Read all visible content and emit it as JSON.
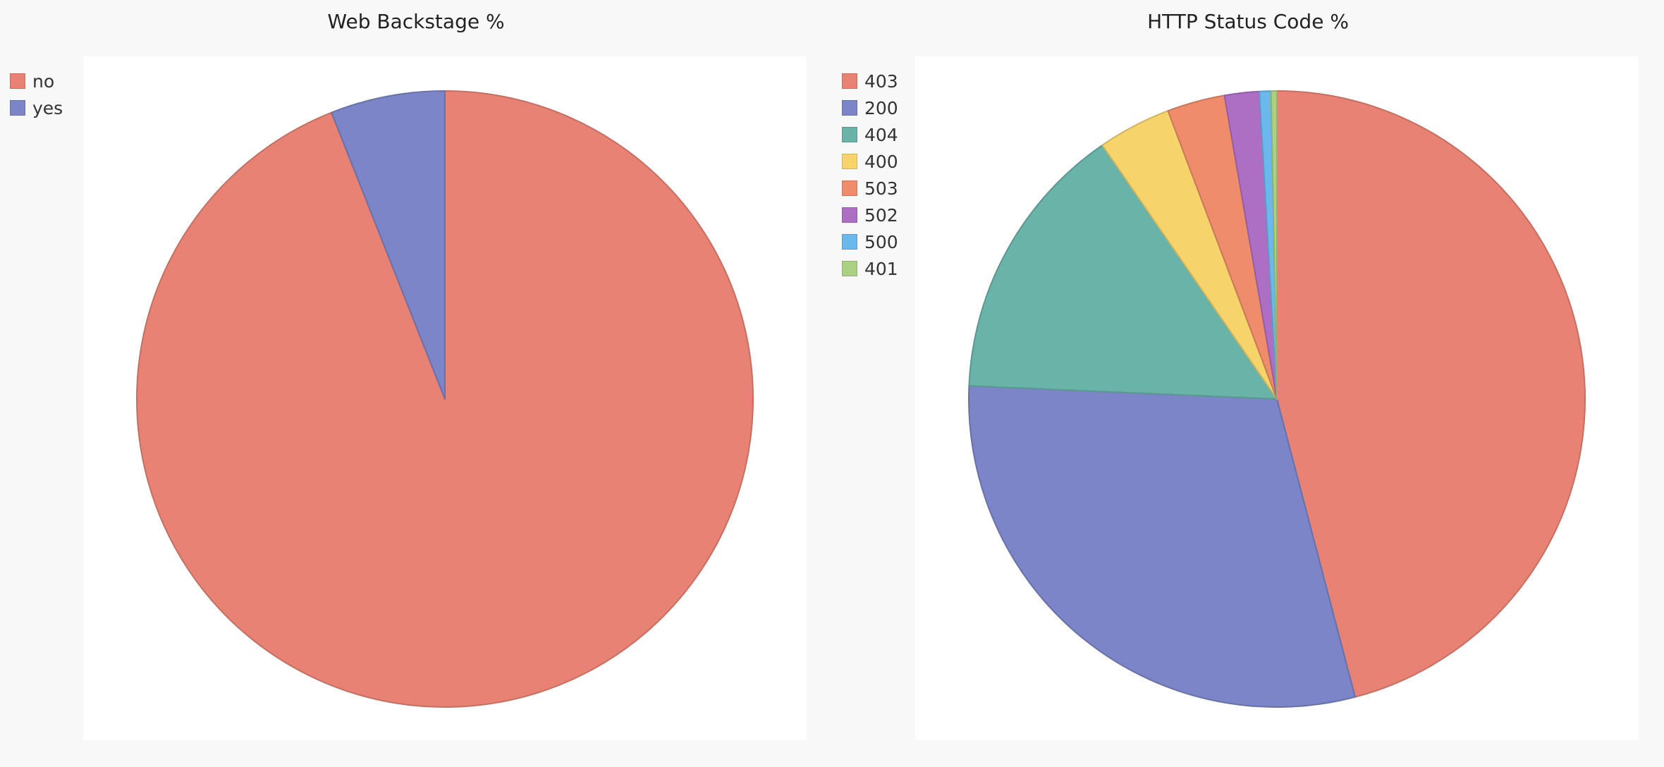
{
  "chart_data": [
    {
      "type": "pie",
      "title": "Web Backstage %",
      "categories": [
        "no",
        "yes"
      ],
      "values": [
        94,
        6
      ],
      "colors": [
        "#e88275",
        "#7b85c7"
      ],
      "legend": "top-left"
    },
    {
      "type": "pie",
      "title": "HTTP Status Code %",
      "categories": [
        "403",
        "200",
        "404",
        "400",
        "503",
        "502",
        "500",
        "401"
      ],
      "values": [
        45.5,
        29.5,
        14.6,
        3.8,
        3.0,
        1.8,
        0.6,
        0.3
      ],
      "colors": [
        "#e88275",
        "#7b85c7",
        "#6ab3a9",
        "#f6d46a",
        "#ef8c6c",
        "#ad6fc4",
        "#6ab8ec",
        "#acd081"
      ],
      "legend": "top-left"
    }
  ]
}
